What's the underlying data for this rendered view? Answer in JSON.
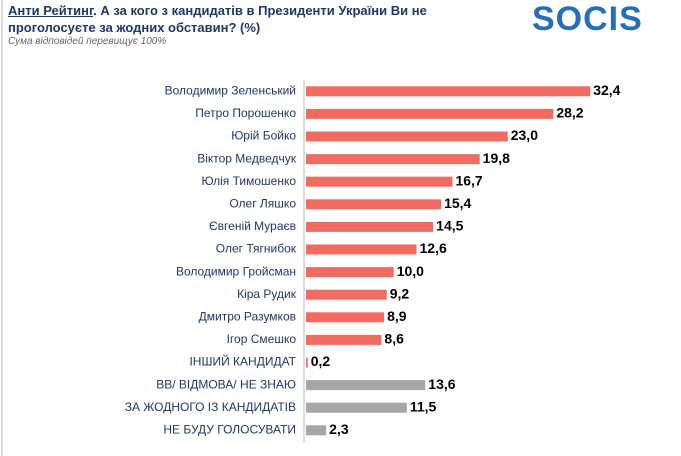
{
  "chart_data": {
    "type": "hbar",
    "title_highlight": "Анти Рейтинг",
    "title": ". А за кого з кандидатів в Президенти України Ви не проголосуєте за жодних обставин? (%)",
    "subtitle": "Сума відповідей перевищує 100%",
    "logo": "SOCIS",
    "categories": [
      "Володимир Зеленський",
      "Петро Порошенко",
      "Юрій Бойко",
      "Віктор Медведчук",
      "Юлія Тимошенко",
      "Олег Ляшко",
      "Євгеній Мураєв",
      "Олег Тягнибок",
      "Володимир Гройсман",
      "Кіра Рудик",
      "Дмитро Разумков",
      "Ігор Смешко",
      "ІНШИЙ КАНДИДАТ",
      "ВВ/ ВІДМОВА/ НЕ ЗНАЮ",
      "ЗА ЖОДНОГО ІЗ КАНДИДАТІВ",
      "НЕ БУДУ ГОЛОСУВАТИ"
    ],
    "values": [
      32.4,
      28.2,
      23.0,
      19.8,
      16.7,
      15.4,
      14.5,
      12.6,
      10.0,
      9.2,
      8.9,
      8.6,
      0.2,
      13.6,
      11.5,
      2.3
    ],
    "value_labels": [
      "32,4",
      "28,2",
      "23,0",
      "19,8",
      "16,7",
      "15,4",
      "14,5",
      "12,6",
      "10,0",
      "9,2",
      "8,9",
      "8,6",
      "0,2",
      "13,6",
      "11,5",
      "2,3"
    ],
    "colors": [
      "#f26b61",
      "#f26b61",
      "#f26b61",
      "#f26b61",
      "#f26b61",
      "#f26b61",
      "#f26b61",
      "#f26b61",
      "#f26b61",
      "#f26b61",
      "#f26b61",
      "#f26b61",
      "#f26b61",
      "#a6a6a6",
      "#a6a6a6",
      "#a6a6a6"
    ],
    "xlim": [
      0,
      35
    ]
  }
}
